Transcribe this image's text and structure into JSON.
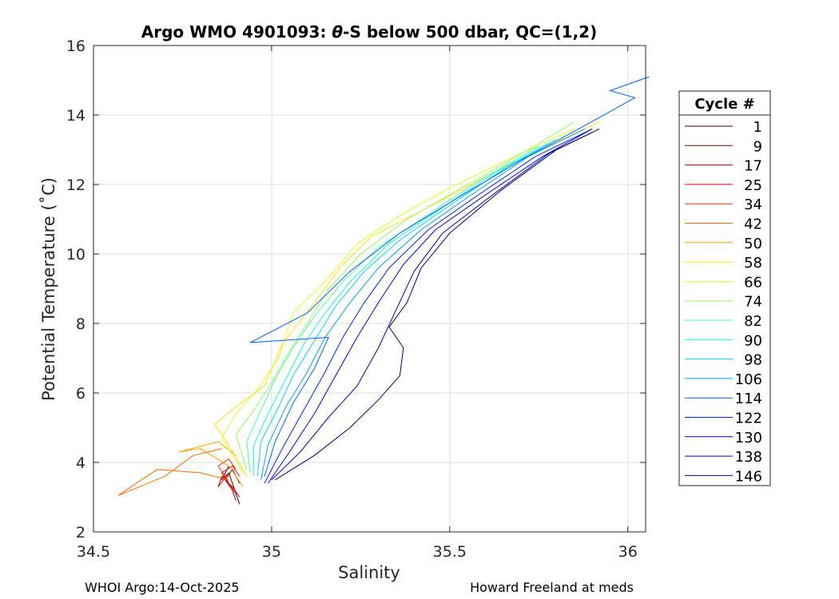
{
  "chart_data": {
    "type": "line",
    "title_prefix": "Argo WMO 4901093: ",
    "title_theta": "θ",
    "title_suffix": "-S below 500 dbar,  QC=(1,2)",
    "xlabel": "Salinity",
    "ylabel": "Potential Temperature (˚C)",
    "xlim": [
      34.5,
      36.05
    ],
    "ylim": [
      2,
      16
    ],
    "xticks": [
      34.5,
      35,
      35.5,
      36
    ],
    "xtick_labels": [
      "34.5",
      "35",
      "35.5",
      "36"
    ],
    "yticks": [
      2,
      4,
      6,
      8,
      10,
      12,
      14,
      16
    ],
    "ytick_labels": [
      "2",
      "4",
      "6",
      "8",
      "10",
      "12",
      "14",
      "16"
    ],
    "grid": true,
    "legend": {
      "title": "Cycle #",
      "placement": "outside-right",
      "entries": [
        {
          "label": "1",
          "color": "#3a0000"
        },
        {
          "label": "9",
          "color": "#7a0000"
        },
        {
          "label": "17",
          "color": "#b80000"
        },
        {
          "label": "25",
          "color": "#f00000"
        },
        {
          "label": "34",
          "color": "#ff3000"
        },
        {
          "label": "42",
          "color": "#ff6a00"
        },
        {
          "label": "50",
          "color": "#ffa000"
        },
        {
          "label": "58",
          "color": "#ffe000"
        },
        {
          "label": "66",
          "color": "#d8ff20"
        },
        {
          "label": "74",
          "color": "#90ff60"
        },
        {
          "label": "82",
          "color": "#50ff9f"
        },
        {
          "label": "90",
          "color": "#10ffdf"
        },
        {
          "label": "98",
          "color": "#00d8ff"
        },
        {
          "label": "106",
          "color": "#00a0ff"
        },
        {
          "label": "114",
          "color": "#0060ff"
        },
        {
          "label": "122",
          "color": "#0020ff"
        },
        {
          "label": "130",
          "color": "#0000e0"
        },
        {
          "label": "138",
          "color": "#0000b0"
        },
        {
          "label": "146",
          "color": "#000080"
        }
      ]
    },
    "series": [
      {
        "name": "1",
        "color": "#3a0000",
        "points": [
          [
            34.91,
            2.8
          ],
          [
            34.9,
            3.1
          ],
          [
            34.89,
            3.4
          ],
          [
            34.88,
            3.7
          ],
          [
            34.86,
            3.5
          ],
          [
            34.88,
            3.9
          ]
        ]
      },
      {
        "name": "9",
        "color": "#7a0000",
        "points": [
          [
            34.9,
            2.9
          ],
          [
            34.89,
            3.2
          ],
          [
            34.87,
            3.5
          ],
          [
            34.89,
            3.8
          ],
          [
            34.91,
            3.4
          ]
        ]
      },
      {
        "name": "17",
        "color": "#b80000",
        "points": [
          [
            34.91,
            3.0
          ],
          [
            34.89,
            3.3
          ],
          [
            34.86,
            3.6
          ],
          [
            34.85,
            3.3
          ],
          [
            34.88,
            3.7
          ]
        ]
      },
      {
        "name": "25",
        "color": "#f00000",
        "points": [
          [
            34.9,
            3.1
          ],
          [
            34.88,
            3.4
          ],
          [
            34.86,
            3.7
          ],
          [
            34.89,
            3.9
          ],
          [
            34.91,
            3.6
          ]
        ]
      },
      {
        "name": "34",
        "color": "#ff3000",
        "points": [
          [
            34.89,
            3.2
          ],
          [
            34.87,
            3.6
          ],
          [
            34.85,
            3.9
          ],
          [
            34.88,
            4.1
          ],
          [
            34.9,
            3.8
          ]
        ]
      },
      {
        "name": "42",
        "color": "#ff6a00",
        "points": [
          [
            34.88,
            3.5
          ],
          [
            34.8,
            3.7
          ],
          [
            34.68,
            3.8
          ],
          [
            34.62,
            3.4
          ],
          [
            34.57,
            3.05
          ],
          [
            34.7,
            3.6
          ],
          [
            34.78,
            4.2
          ],
          [
            34.86,
            4.4
          ]
        ]
      },
      {
        "name": "50",
        "color": "#ffa000",
        "points": [
          [
            34.92,
            3.3
          ],
          [
            34.88,
            3.9
          ],
          [
            34.8,
            4.4
          ],
          [
            34.74,
            4.3
          ],
          [
            34.85,
            4.6
          ],
          [
            34.9,
            4.2
          ]
        ]
      },
      {
        "name": "58",
        "color": "#ffe000",
        "points": [
          [
            34.93,
            3.6
          ],
          [
            34.88,
            4.5
          ],
          [
            34.84,
            5.1
          ],
          [
            34.9,
            5.6
          ],
          [
            34.98,
            6.2
          ],
          [
            35.03,
            7.4
          ],
          [
            35.12,
            8.6
          ],
          [
            35.2,
            9.7
          ],
          [
            35.28,
            10.5
          ],
          [
            35.45,
            11.4
          ],
          [
            35.65,
            12.5
          ],
          [
            35.92,
            13.8
          ]
        ]
      },
      {
        "name": "66",
        "color": "#d8ff20",
        "points": [
          [
            34.92,
            3.7
          ],
          [
            34.86,
            4.7
          ],
          [
            34.9,
            5.4
          ],
          [
            34.96,
            6.1
          ],
          [
            35.02,
            7.0
          ],
          [
            35.06,
            8.3
          ],
          [
            35.15,
            9.2
          ],
          [
            35.24,
            10.3
          ],
          [
            35.36,
            11.1
          ],
          [
            35.5,
            11.9
          ],
          [
            35.68,
            12.8
          ],
          [
            35.85,
            13.6
          ]
        ]
      },
      {
        "name": "74",
        "color": "#90ff60",
        "points": [
          [
            34.93,
            3.8
          ],
          [
            34.9,
            4.8
          ],
          [
            34.95,
            5.5
          ],
          [
            35.0,
            6.3
          ],
          [
            35.05,
            7.2
          ],
          [
            35.1,
            8.0
          ],
          [
            35.16,
            9.0
          ],
          [
            35.25,
            10.0
          ],
          [
            35.38,
            11.0
          ],
          [
            35.55,
            12.0
          ],
          [
            35.72,
            13.0
          ],
          [
            35.85,
            13.8
          ]
        ]
      },
      {
        "name": "82",
        "color": "#50ff9f",
        "points": [
          [
            34.94,
            3.7
          ],
          [
            34.93,
            4.6
          ],
          [
            34.97,
            5.5
          ],
          [
            35.01,
            6.4
          ],
          [
            35.06,
            7.3
          ],
          [
            35.12,
            8.2
          ],
          [
            35.2,
            9.2
          ],
          [
            35.3,
            10.2
          ],
          [
            35.42,
            11.0
          ],
          [
            35.58,
            12.1
          ],
          [
            35.75,
            13.1
          ]
        ]
      },
      {
        "name": "90",
        "color": "#10ffdf",
        "points": [
          [
            34.95,
            3.6
          ],
          [
            34.95,
            4.5
          ],
          [
            34.99,
            5.4
          ],
          [
            35.04,
            6.4
          ],
          [
            35.09,
            7.4
          ],
          [
            35.15,
            8.3
          ],
          [
            35.22,
            9.2
          ],
          [
            35.33,
            10.3
          ],
          [
            35.46,
            11.2
          ],
          [
            35.62,
            12.3
          ],
          [
            35.78,
            13.2
          ]
        ]
      },
      {
        "name": "98",
        "color": "#00d8ff",
        "points": [
          [
            34.96,
            3.6
          ],
          [
            34.97,
            4.6
          ],
          [
            35.02,
            5.6
          ],
          [
            35.06,
            6.5
          ],
          [
            35.12,
            7.5
          ],
          [
            35.18,
            8.5
          ],
          [
            35.26,
            9.5
          ],
          [
            35.36,
            10.4
          ],
          [
            35.5,
            11.4
          ],
          [
            35.66,
            12.5
          ],
          [
            35.8,
            13.3
          ]
        ]
      },
      {
        "name": "106",
        "color": "#00a0ff",
        "points": [
          [
            34.97,
            3.5
          ],
          [
            34.99,
            4.5
          ],
          [
            35.04,
            5.6
          ],
          [
            35.1,
            6.6
          ],
          [
            35.15,
            7.6
          ],
          [
            35.22,
            8.6
          ],
          [
            35.3,
            9.6
          ],
          [
            35.42,
            10.7
          ],
          [
            35.56,
            11.7
          ],
          [
            35.72,
            12.8
          ],
          [
            35.88,
            13.6
          ]
        ]
      },
      {
        "name": "114",
        "color": "#0060ff",
        "points": [
          [
            34.98,
            3.6
          ],
          [
            35.01,
            4.6
          ],
          [
            35.06,
            5.7
          ],
          [
            35.12,
            6.7
          ],
          [
            35.16,
            7.6
          ],
          [
            34.94,
            7.45
          ],
          [
            35.1,
            8.3
          ],
          [
            35.22,
            9.5
          ],
          [
            35.36,
            10.6
          ],
          [
            35.52,
            11.6
          ],
          [
            35.7,
            12.7
          ],
          [
            35.88,
            13.7
          ],
          [
            36.02,
            14.5
          ],
          [
            35.95,
            14.7
          ],
          [
            36.06,
            15.1
          ]
        ]
      },
      {
        "name": "122",
        "color": "#0020ff",
        "points": [
          [
            34.98,
            3.4
          ],
          [
            35.03,
            4.4
          ],
          [
            35.09,
            5.5
          ],
          [
            35.15,
            6.6
          ],
          [
            35.2,
            7.6
          ],
          [
            35.26,
            8.6
          ],
          [
            35.33,
            9.6
          ],
          [
            35.44,
            10.7
          ],
          [
            35.58,
            11.7
          ],
          [
            35.74,
            12.8
          ],
          [
            35.9,
            13.6
          ]
        ]
      },
      {
        "name": "130",
        "color": "#0000e0",
        "points": [
          [
            34.99,
            3.4
          ],
          [
            35.05,
            4.3
          ],
          [
            35.12,
            5.4
          ],
          [
            35.18,
            6.5
          ],
          [
            35.24,
            7.6
          ],
          [
            35.3,
            8.6
          ],
          [
            35.37,
            9.7
          ],
          [
            35.46,
            10.7
          ],
          [
            35.6,
            11.7
          ],
          [
            35.76,
            12.8
          ],
          [
            35.9,
            13.6
          ]
        ]
      },
      {
        "name": "138",
        "color": "#0000b0",
        "points": [
          [
            35.0,
            3.5
          ],
          [
            35.08,
            4.3
          ],
          [
            35.16,
            5.3
          ],
          [
            35.24,
            6.2
          ],
          [
            35.3,
            7.3
          ],
          [
            35.35,
            8.4
          ],
          [
            35.4,
            9.5
          ],
          [
            35.48,
            10.6
          ],
          [
            35.62,
            11.7
          ],
          [
            35.78,
            12.9
          ],
          [
            35.9,
            13.5
          ]
        ]
      },
      {
        "name": "146",
        "color": "#000080",
        "points": [
          [
            35.01,
            3.5
          ],
          [
            35.12,
            4.2
          ],
          [
            35.22,
            5.0
          ],
          [
            35.3,
            5.8
          ],
          [
            35.36,
            6.5
          ],
          [
            35.37,
            7.3
          ],
          [
            35.33,
            7.9
          ],
          [
            35.38,
            8.6
          ],
          [
            35.42,
            9.6
          ],
          [
            35.5,
            10.6
          ],
          [
            35.64,
            11.8
          ],
          [
            35.8,
            13.0
          ],
          [
            35.92,
            13.6
          ]
        ]
      }
    ]
  },
  "footer": {
    "left": "WHOI Argo:14-Oct-2025",
    "right": "Howard Freeland at meds"
  }
}
